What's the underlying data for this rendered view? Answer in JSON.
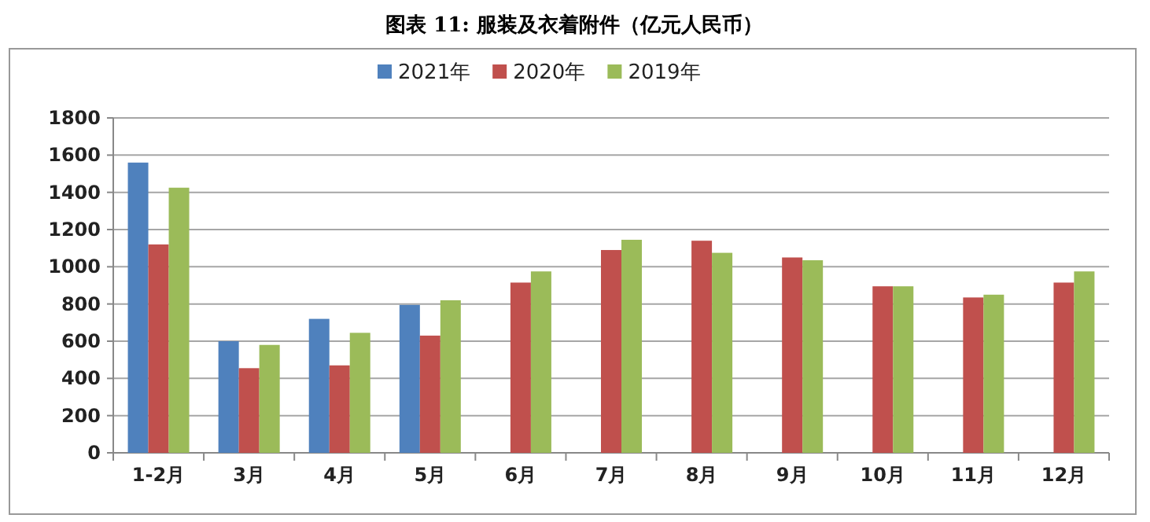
{
  "chart_data": {
    "type": "bar",
    "title": "图表 11:  服装及衣着附件（亿元人民币）",
    "categories": [
      "1-2月",
      "3月",
      "4月",
      "5月",
      "6月",
      "7月",
      "8月",
      "9月",
      "10月",
      "11月",
      "12月"
    ],
    "series": [
      {
        "name": "2021年",
        "color": "#4f81bd",
        "values": [
          1560,
          600,
          720,
          795,
          null,
          null,
          null,
          null,
          null,
          null,
          null
        ]
      },
      {
        "name": "2020年",
        "color": "#c0504d",
        "values": [
          1120,
          455,
          470,
          630,
          915,
          1090,
          1140,
          1050,
          895,
          835,
          915
        ]
      },
      {
        "name": "2019年",
        "color": "#9bbb59",
        "values": [
          1425,
          580,
          645,
          820,
          975,
          1145,
          1075,
          1035,
          895,
          850,
          975
        ]
      }
    ],
    "ylim": [
      0,
      1800
    ],
    "yticks": [
      0,
      200,
      400,
      600,
      800,
      1000,
      1200,
      1400,
      1600,
      1800
    ],
    "grid": "y",
    "legend": "top"
  }
}
